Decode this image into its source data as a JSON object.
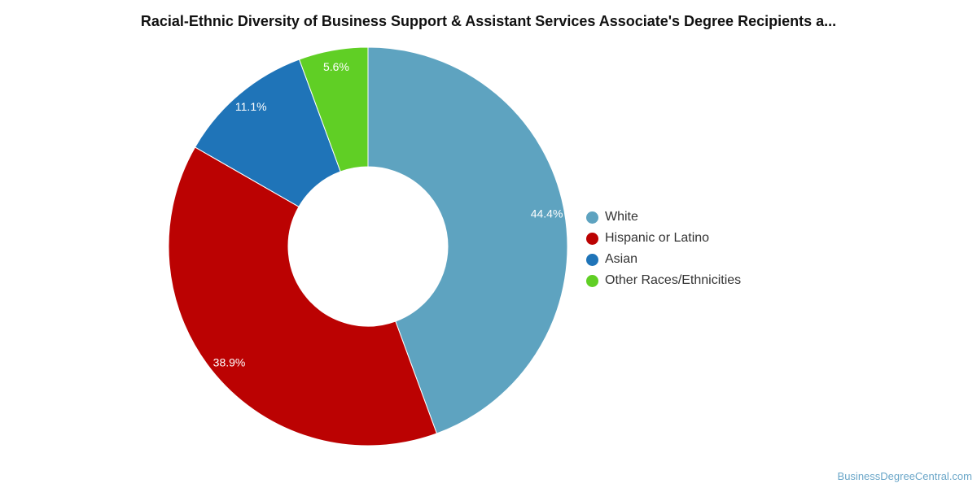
{
  "chart_data": {
    "type": "pie",
    "title": "Racial-Ethnic Diversity of Business Support & Assistant Services Associate's Degree Recipients a...",
    "donut": true,
    "legend_position": "right",
    "slices": [
      {
        "label": "White",
        "value": 44.4,
        "display": "44.4%",
        "color": "#5ea3c0"
      },
      {
        "label": "Hispanic or Latino",
        "value": 38.9,
        "display": "38.9%",
        "color": "#bb0202"
      },
      {
        "label": "Asian",
        "value": 11.1,
        "display": "11.1%",
        "color": "#1f74b8"
      },
      {
        "label": "Other Races/Ethnicities",
        "value": 5.6,
        "display": "5.6%",
        "color": "#60cf25"
      }
    ]
  },
  "source": "BusinessDegreeCentral.com"
}
